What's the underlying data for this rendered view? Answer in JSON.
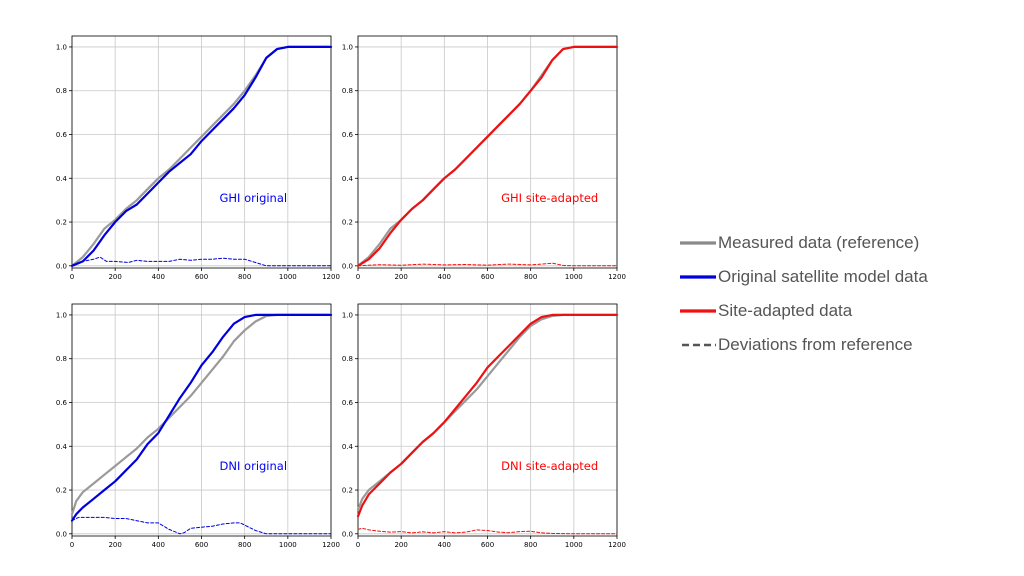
{
  "chart_data": [
    {
      "type": "line",
      "annotation": "GHI original",
      "annotation_color": "#0000ff",
      "xlim": [
        0,
        1200
      ],
      "ylim": [
        -0.01,
        1.05
      ],
      "xticks": [
        0,
        200,
        400,
        600,
        800,
        1000,
        1200
      ],
      "yticks": [
        0.0,
        0.2,
        0.4,
        0.6,
        0.8,
        1.0
      ],
      "grid": true,
      "series": [
        {
          "role": "measured",
          "color": "#9a9a9a",
          "x": [
            0,
            50,
            100,
            150,
            200,
            250,
            300,
            350,
            400,
            450,
            500,
            550,
            600,
            650,
            700,
            750,
            800,
            850,
            900,
            950,
            1000,
            1100,
            1200
          ],
          "y": [
            0.0,
            0.04,
            0.1,
            0.17,
            0.21,
            0.26,
            0.3,
            0.35,
            0.4,
            0.44,
            0.49,
            0.54,
            0.59,
            0.64,
            0.69,
            0.74,
            0.8,
            0.87,
            0.95,
            0.99,
            1.0,
            1.0,
            1.0
          ]
        },
        {
          "role": "model",
          "color": "#0000dd",
          "x": [
            0,
            50,
            100,
            150,
            200,
            250,
            300,
            350,
            400,
            450,
            500,
            550,
            600,
            650,
            700,
            750,
            800,
            850,
            900,
            950,
            1000,
            1100,
            1200
          ],
          "y": [
            0.0,
            0.02,
            0.07,
            0.14,
            0.2,
            0.25,
            0.28,
            0.33,
            0.38,
            0.43,
            0.47,
            0.51,
            0.57,
            0.62,
            0.67,
            0.72,
            0.78,
            0.86,
            0.95,
            0.99,
            1.0,
            1.0,
            1.0
          ]
        },
        {
          "role": "deviation",
          "color": "#0000dd",
          "dashed": true,
          "x": [
            0,
            50,
            100,
            130,
            160,
            200,
            260,
            300,
            350,
            400,
            450,
            500,
            550,
            600,
            650,
            700,
            750,
            800,
            850,
            900,
            1000,
            1100,
            1200
          ],
          "y": [
            0.0,
            0.02,
            0.03,
            0.04,
            0.02,
            0.02,
            0.015,
            0.025,
            0.02,
            0.02,
            0.02,
            0.03,
            0.025,
            0.03,
            0.03,
            0.035,
            0.03,
            0.03,
            0.015,
            0.0,
            0.0,
            0.0,
            0.0
          ]
        }
      ]
    },
    {
      "type": "line",
      "annotation": "GHI site-adapted",
      "annotation_color": "#ff0000",
      "xlim": [
        0,
        1200
      ],
      "ylim": [
        -0.01,
        1.05
      ],
      "xticks": [
        0,
        200,
        400,
        600,
        800,
        1000,
        1200
      ],
      "yticks": [
        0.0,
        0.2,
        0.4,
        0.6,
        0.8,
        1.0
      ],
      "grid": true,
      "series": [
        {
          "role": "measured",
          "color": "#9a9a9a",
          "x": [
            0,
            50,
            100,
            150,
            200,
            250,
            300,
            350,
            400,
            450,
            500,
            550,
            600,
            650,
            700,
            750,
            800,
            850,
            900,
            950,
            1000,
            1100,
            1200
          ],
          "y": [
            0.0,
            0.04,
            0.1,
            0.17,
            0.21,
            0.26,
            0.3,
            0.35,
            0.4,
            0.44,
            0.49,
            0.54,
            0.59,
            0.64,
            0.69,
            0.74,
            0.8,
            0.87,
            0.94,
            0.99,
            1.0,
            1.0,
            1.0
          ]
        },
        {
          "role": "adapted",
          "color": "#ee1111",
          "x": [
            0,
            50,
            100,
            150,
            200,
            250,
            300,
            350,
            400,
            450,
            500,
            550,
            600,
            650,
            700,
            750,
            800,
            850,
            900,
            950,
            1000,
            1100,
            1200
          ],
          "y": [
            0.0,
            0.03,
            0.08,
            0.15,
            0.21,
            0.26,
            0.3,
            0.35,
            0.4,
            0.44,
            0.49,
            0.54,
            0.59,
            0.64,
            0.69,
            0.74,
            0.8,
            0.86,
            0.94,
            0.99,
            1.0,
            1.0,
            1.0
          ]
        },
        {
          "role": "deviation",
          "color": "#ee1111",
          "dashed": true,
          "x": [
            0,
            100,
            200,
            300,
            400,
            500,
            600,
            700,
            800,
            850,
            900,
            950,
            1000,
            1100,
            1200
          ],
          "y": [
            0.0,
            0.005,
            0.003,
            0.008,
            0.004,
            0.006,
            0.003,
            0.008,
            0.004,
            0.008,
            0.012,
            0.002,
            0.0,
            0.0,
            0.0
          ]
        }
      ]
    },
    {
      "type": "line",
      "annotation": "DNI original",
      "annotation_color": "#0000ff",
      "xlim": [
        0,
        1200
      ],
      "ylim": [
        -0.01,
        1.05
      ],
      "xticks": [
        0,
        200,
        400,
        600,
        800,
        1000,
        1200
      ],
      "yticks": [
        0.0,
        0.2,
        0.4,
        0.6,
        0.8,
        1.0
      ],
      "grid": true,
      "series": [
        {
          "role": "measured",
          "color": "#9a9a9a",
          "x": [
            0,
            20,
            50,
            100,
            150,
            200,
            250,
            300,
            350,
            400,
            450,
            500,
            550,
            600,
            650,
            700,
            750,
            800,
            850,
            900,
            950,
            1000,
            1100,
            1200
          ],
          "y": [
            0.09,
            0.15,
            0.19,
            0.23,
            0.27,
            0.31,
            0.35,
            0.39,
            0.44,
            0.48,
            0.53,
            0.58,
            0.63,
            0.69,
            0.75,
            0.81,
            0.88,
            0.93,
            0.97,
            0.995,
            1.0,
            1.0,
            1.0,
            1.0
          ]
        },
        {
          "role": "model",
          "color": "#0000dd",
          "x": [
            0,
            20,
            50,
            100,
            150,
            200,
            250,
            300,
            350,
            400,
            450,
            500,
            550,
            600,
            650,
            700,
            750,
            800,
            850,
            900,
            1000,
            1100,
            1200
          ],
          "y": [
            0.06,
            0.09,
            0.12,
            0.16,
            0.2,
            0.24,
            0.29,
            0.34,
            0.41,
            0.46,
            0.54,
            0.62,
            0.69,
            0.77,
            0.83,
            0.9,
            0.96,
            0.99,
            1.0,
            1.0,
            1.0,
            1.0,
            1.0
          ]
        },
        {
          "role": "deviation",
          "color": "#0000dd",
          "dashed": true,
          "x": [
            0,
            30,
            100,
            150,
            200,
            250,
            300,
            350,
            400,
            450,
            500,
            520,
            550,
            600,
            650,
            700,
            750,
            780,
            800,
            850,
            900,
            1000,
            1100,
            1200
          ],
          "y": [
            0.06,
            0.075,
            0.075,
            0.075,
            0.07,
            0.07,
            0.06,
            0.05,
            0.05,
            0.02,
            0.0,
            0.005,
            0.025,
            0.03,
            0.035,
            0.045,
            0.05,
            0.05,
            0.04,
            0.015,
            0.0,
            0.0,
            0.0,
            0.0
          ]
        }
      ]
    },
    {
      "type": "line",
      "annotation": "DNI site-adapted",
      "annotation_color": "#ff0000",
      "xlim": [
        0,
        1200
      ],
      "ylim": [
        -0.01,
        1.05
      ],
      "xticks": [
        0,
        200,
        400,
        600,
        800,
        1000,
        1200
      ],
      "yticks": [
        0.0,
        0.2,
        0.4,
        0.6,
        0.8,
        1.0
      ],
      "grid": true,
      "series": [
        {
          "role": "measured",
          "color": "#9a9a9a",
          "x": [
            0,
            20,
            50,
            100,
            150,
            200,
            250,
            300,
            350,
            400,
            450,
            500,
            550,
            600,
            650,
            700,
            750,
            800,
            850,
            900,
            950,
            1000,
            1100,
            1200
          ],
          "y": [
            0.11,
            0.16,
            0.2,
            0.24,
            0.28,
            0.32,
            0.37,
            0.42,
            0.46,
            0.51,
            0.56,
            0.61,
            0.66,
            0.72,
            0.78,
            0.84,
            0.9,
            0.95,
            0.98,
            0.995,
            1.0,
            1.0,
            1.0,
            1.0
          ]
        },
        {
          "role": "adapted",
          "color": "#ee1111",
          "x": [
            0,
            20,
            50,
            100,
            150,
            200,
            250,
            300,
            350,
            400,
            450,
            500,
            550,
            600,
            650,
            700,
            750,
            800,
            850,
            900,
            950,
            1000,
            1100,
            1200
          ],
          "y": [
            0.08,
            0.13,
            0.18,
            0.23,
            0.28,
            0.32,
            0.37,
            0.42,
            0.46,
            0.51,
            0.57,
            0.63,
            0.69,
            0.76,
            0.81,
            0.86,
            0.91,
            0.96,
            0.99,
            1.0,
            1.0,
            1.0,
            1.0,
            1.0
          ]
        },
        {
          "role": "deviation",
          "color": "#ee1111",
          "dashed": true,
          "x": [
            0,
            20,
            50,
            100,
            150,
            200,
            250,
            300,
            350,
            400,
            450,
            500,
            550,
            600,
            650,
            700,
            750,
            800,
            850,
            900,
            1000,
            1100,
            1200
          ],
          "y": [
            0.02,
            0.025,
            0.018,
            0.012,
            0.008,
            0.01,
            0.004,
            0.009,
            0.004,
            0.01,
            0.004,
            0.008,
            0.018,
            0.015,
            0.008,
            0.005,
            0.01,
            0.012,
            0.004,
            0.002,
            0.0,
            0.0,
            0.0
          ]
        }
      ]
    }
  ],
  "legend": {
    "items": [
      {
        "label": "Measured data (reference)",
        "color": "#8a8a8a",
        "style": "solid"
      },
      {
        "label": "Original satellite model data",
        "color": "#0000dd",
        "style": "solid"
      },
      {
        "label": "Site-adapted data",
        "color": "#ee1111",
        "style": "solid"
      },
      {
        "label": "Deviations from reference",
        "color": "#555555",
        "style": "dashed"
      }
    ]
  }
}
